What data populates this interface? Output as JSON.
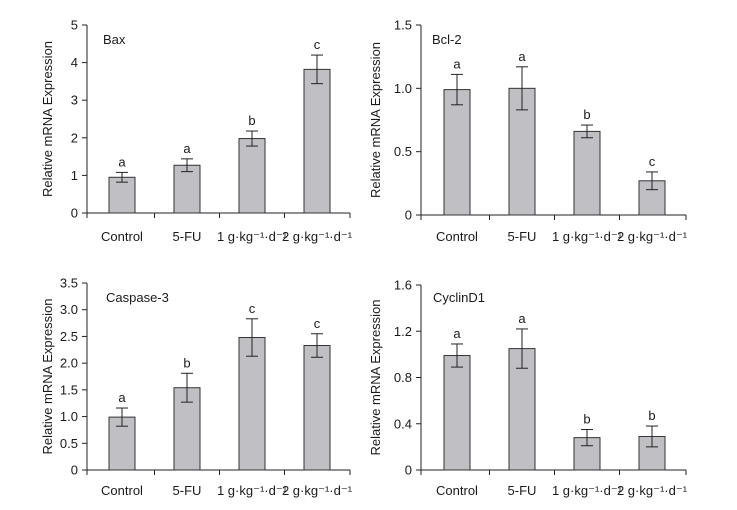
{
  "colors": {
    "bar_fill": "#c0c0c4",
    "bar_stroke": "#333333",
    "axis": "#222222",
    "text": "#1a1a1a"
  },
  "chart_data": [
    {
      "type": "bar",
      "title": "Bax",
      "ylabel": "Relative mRNA Expression",
      "categories": [
        "Control",
        "5-FU",
        "1 g·kg⁻¹·d⁻¹",
        "2 g·kg⁻¹·d⁻¹"
      ],
      "values": [
        0.95,
        1.27,
        1.98,
        3.82
      ],
      "errors": [
        0.13,
        0.17,
        0.2,
        0.38
      ],
      "significance": [
        "a",
        "a",
        "b",
        "c"
      ],
      "ylim": [
        0,
        5
      ],
      "yticks": [
        0,
        1,
        2,
        3,
        4,
        5
      ],
      "ytick_labels": [
        "0",
        "1",
        "2",
        "3",
        "4",
        "5"
      ]
    },
    {
      "type": "bar",
      "title": "Bcl-2",
      "ylabel": "Relative mRNA Expression",
      "categories": [
        "Control",
        "5-FU",
        "1 g·kg⁻¹·d⁻¹",
        "2 g·kg⁻¹·d⁻¹"
      ],
      "values": [
        0.99,
        1.0,
        0.66,
        0.27
      ],
      "errors": [
        0.12,
        0.17,
        0.05,
        0.07
      ],
      "significance": [
        "a",
        "a",
        "b",
        "c"
      ],
      "ylim": [
        0,
        1.5
      ],
      "yticks": [
        0,
        0.5,
        1.0,
        1.5
      ],
      "ytick_labels": [
        "0",
        "0.5",
        "1.0",
        "1.5"
      ]
    },
    {
      "type": "bar",
      "title": "Caspase-3",
      "ylabel": "Relative mRNA Expression",
      "categories": [
        "Control",
        "5-FU",
        "1 g·kg⁻¹·d⁻¹",
        "2 g·kg⁻¹·d⁻¹"
      ],
      "values": [
        0.99,
        1.54,
        2.48,
        2.33
      ],
      "errors": [
        0.17,
        0.27,
        0.35,
        0.22
      ],
      "significance": [
        "a",
        "b",
        "c",
        "c"
      ],
      "ylim": [
        0,
        3.5
      ],
      "yticks": [
        0,
        0.5,
        1.0,
        1.5,
        2.0,
        2.5,
        3.0,
        3.5
      ],
      "ytick_labels": [
        "0",
        "0.5",
        "1.0",
        "1.5",
        "2.0",
        "2.5",
        "3.0",
        "3.5"
      ]
    },
    {
      "type": "bar",
      "title": "CyclinD1",
      "ylabel": "Relative mRNA Expression",
      "categories": [
        "Control",
        "5-FU",
        "1 g·kg⁻¹·d⁻¹",
        "2 g·kg⁻¹·d⁻¹"
      ],
      "values": [
        0.99,
        1.05,
        0.28,
        0.29
      ],
      "errors": [
        0.1,
        0.17,
        0.07,
        0.09
      ],
      "significance": [
        "a",
        "a",
        "b",
        "b"
      ],
      "ylim": [
        0,
        1.6
      ],
      "yticks": [
        0,
        0.4,
        0.8,
        1.2,
        1.6
      ],
      "ytick_labels": [
        "0",
        "0.4",
        "0.8",
        "1.2",
        "1.6"
      ]
    }
  ]
}
